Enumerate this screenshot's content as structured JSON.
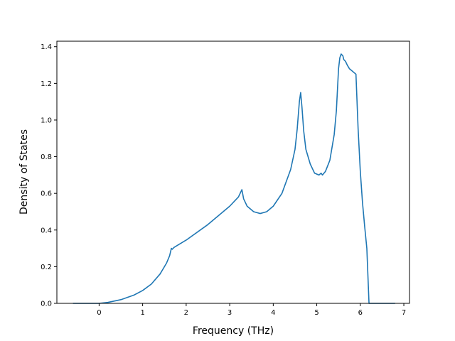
{
  "chart_data": {
    "type": "line",
    "title": "",
    "xlabel": "Frequency (THz)",
    "ylabel": "Density of States",
    "xlim": [
      -0.97,
      7.13
    ],
    "ylim": [
      0.0,
      1.43
    ],
    "xticks": [
      0,
      1,
      2,
      3,
      4,
      5,
      6,
      7
    ],
    "xtick_labels": [
      "0",
      "1",
      "2",
      "3",
      "4",
      "5",
      "6",
      "7"
    ],
    "yticks": [
      0.0,
      0.2,
      0.4,
      0.6,
      0.8,
      1.0,
      1.2,
      1.4
    ],
    "ytick_labels": [
      "0.0",
      "0.2",
      "0.4",
      "0.6",
      "0.8",
      "1.0",
      "1.2",
      "1.4"
    ],
    "grid": false,
    "legend": "none",
    "line_color": "#1f77b4",
    "series": [
      {
        "x": [
          -0.6,
          0.0,
          0.2,
          0.5,
          0.8,
          1.0,
          1.2,
          1.4,
          1.55,
          1.62,
          1.66,
          1.68,
          1.72,
          2.0,
          2.5,
          3.0,
          3.2,
          3.28,
          3.32,
          3.4,
          3.55,
          3.7,
          3.85,
          4.0,
          4.2,
          4.4,
          4.5,
          4.55,
          4.6,
          4.63,
          4.66,
          4.7,
          4.75,
          4.85,
          4.95,
          5.05,
          5.1,
          5.13,
          5.2,
          5.3,
          5.4,
          5.45,
          5.5,
          5.53,
          5.56,
          5.6,
          5.62,
          5.66,
          5.7,
          5.75,
          5.8,
          5.9,
          5.95,
          6.0,
          6.05,
          6.1,
          6.15,
          6.2,
          6.5,
          6.8
        ],
        "y": [
          0.0,
          0.0,
          0.005,
          0.02,
          0.045,
          0.07,
          0.105,
          0.16,
          0.22,
          0.26,
          0.3,
          0.295,
          0.305,
          0.345,
          0.43,
          0.53,
          0.58,
          0.62,
          0.57,
          0.53,
          0.5,
          0.49,
          0.5,
          0.53,
          0.6,
          0.73,
          0.84,
          0.95,
          1.1,
          1.15,
          1.07,
          0.94,
          0.84,
          0.76,
          0.71,
          0.7,
          0.71,
          0.7,
          0.72,
          0.78,
          0.92,
          1.05,
          1.28,
          1.34,
          1.36,
          1.35,
          1.33,
          1.32,
          1.3,
          1.28,
          1.27,
          1.25,
          0.95,
          0.72,
          0.55,
          0.42,
          0.3,
          0.0,
          0.0,
          0.0
        ]
      }
    ]
  }
}
